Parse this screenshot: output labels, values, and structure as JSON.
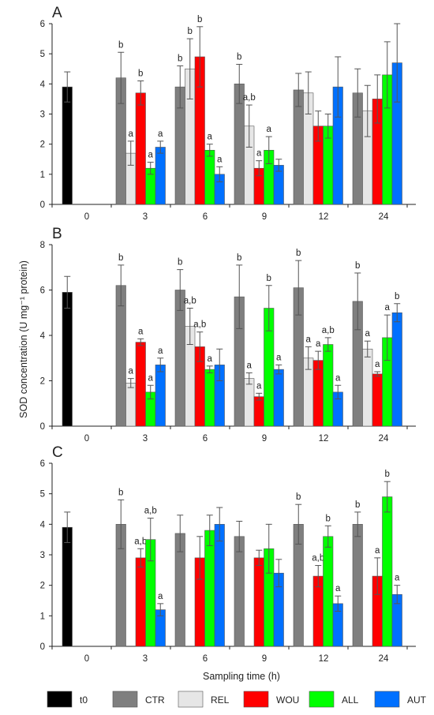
{
  "ylabel": "SOD concentration (U mg⁻¹ protein)",
  "xlabel": "Sampling time (h)",
  "legend": [
    {
      "name": "t0",
      "color": "#000000"
    },
    {
      "name": "CTR",
      "color": "#7f7f7f"
    },
    {
      "name": "REL",
      "color": "#e6e6e6"
    },
    {
      "name": "WOU",
      "color": "#ff0000"
    },
    {
      "name": "ALL",
      "color": "#00ff00"
    },
    {
      "name": "AUT",
      "color": "#0070ff"
    }
  ],
  "chart_data": [
    {
      "type": "bar",
      "panel": "A",
      "categories": [
        "0",
        "3",
        "6",
        "9",
        "12",
        "24"
      ],
      "ylim": [
        0,
        6
      ],
      "yticks": [
        0,
        1,
        2,
        3,
        4,
        5,
        6
      ],
      "grid": false,
      "t0": {
        "value": 3.9,
        "error": 0.5,
        "label": ""
      },
      "series": [
        {
          "name": "CTR",
          "values": [
            null,
            4.2,
            3.9,
            4.0,
            3.8,
            3.7
          ],
          "errors": [
            null,
            0.85,
            0.7,
            0.65,
            0.55,
            0.8
          ],
          "labels": [
            "",
            "b",
            "b",
            "b",
            "",
            ""
          ]
        },
        {
          "name": "REL",
          "values": [
            null,
            1.7,
            4.5,
            2.6,
            3.7,
            3.1
          ],
          "errors": [
            null,
            0.4,
            1.0,
            0.7,
            0.7,
            0.85
          ],
          "labels": [
            "",
            "a",
            "b",
            "a,b",
            "",
            ""
          ]
        },
        {
          "name": "WOU",
          "values": [
            null,
            3.7,
            4.9,
            1.2,
            2.6,
            3.5
          ],
          "errors": [
            null,
            0.4,
            1.0,
            0.25,
            0.5,
            0.8
          ],
          "labels": [
            "",
            "b",
            "b",
            "a",
            "",
            ""
          ]
        },
        {
          "name": "ALL",
          "values": [
            null,
            1.2,
            1.8,
            1.8,
            2.6,
            4.3
          ],
          "errors": [
            null,
            0.2,
            0.2,
            0.45,
            0.4,
            1.1
          ],
          "labels": [
            "",
            "a",
            "a",
            "a",
            "",
            ""
          ]
        },
        {
          "name": "AUT",
          "values": [
            null,
            1.9,
            1.0,
            1.3,
            3.9,
            4.7
          ],
          "errors": [
            null,
            0.2,
            0.25,
            0.2,
            1.0,
            1.3
          ],
          "labels": [
            "",
            "a",
            "a",
            "",
            "",
            ""
          ]
        }
      ]
    },
    {
      "type": "bar",
      "panel": "B",
      "categories": [
        "0",
        "3",
        "6",
        "9",
        "12",
        "24"
      ],
      "ylim": [
        0,
        8
      ],
      "yticks": [
        0,
        2,
        4,
        6,
        8
      ],
      "grid": false,
      "t0": {
        "value": 5.9,
        "error": 0.7,
        "label": ""
      },
      "series": [
        {
          "name": "CTR",
          "values": [
            null,
            6.2,
            6.0,
            5.7,
            6.1,
            5.5
          ],
          "errors": [
            null,
            0.9,
            0.9,
            1.4,
            1.2,
            1.25
          ],
          "labels": [
            "",
            "b",
            "b",
            "b",
            "b",
            "b"
          ]
        },
        {
          "name": "REL",
          "values": [
            null,
            1.9,
            4.4,
            2.1,
            3.0,
            3.4
          ],
          "errors": [
            null,
            0.2,
            0.8,
            0.25,
            0.5,
            0.35
          ],
          "labels": [
            "",
            "a",
            "a,b",
            "a",
            "a",
            "a"
          ]
        },
        {
          "name": "WOU",
          "values": [
            null,
            3.7,
            3.5,
            1.3,
            2.9,
            2.3
          ],
          "errors": [
            null,
            0.15,
            0.65,
            0.15,
            0.4,
            0.1
          ],
          "labels": [
            "",
            "a",
            "a,b",
            "a",
            "a",
            "a"
          ]
        },
        {
          "name": "ALL",
          "values": [
            null,
            1.5,
            2.5,
            5.2,
            3.6,
            3.9
          ],
          "errors": [
            null,
            0.3,
            0.15,
            1.0,
            0.3,
            1.0
          ],
          "labels": [
            "",
            "a",
            "a",
            "b",
            "a,b",
            "a"
          ]
        },
        {
          "name": "AUT",
          "values": [
            null,
            2.7,
            2.7,
            2.5,
            1.5,
            5.0
          ],
          "errors": [
            null,
            0.3,
            0.7,
            0.2,
            0.3,
            0.4
          ],
          "labels": [
            "",
            "a",
            "",
            "a",
            "a",
            "b"
          ]
        }
      ]
    },
    {
      "type": "bar",
      "panel": "C",
      "categories": [
        "0",
        "3",
        "6",
        "9",
        "12",
        "24"
      ],
      "ylim": [
        0,
        6
      ],
      "yticks": [
        0,
        1,
        2,
        3,
        4,
        5,
        6
      ],
      "grid": false,
      "t0": {
        "value": 3.9,
        "error": 0.5,
        "label": ""
      },
      "series": [
        {
          "name": "CTR",
          "values": [
            null,
            4.0,
            3.7,
            3.6,
            4.0,
            4.0
          ],
          "errors": [
            null,
            0.8,
            0.6,
            0.5,
            0.65,
            0.4
          ],
          "labels": [
            "",
            "b",
            "",
            "",
            "b",
            "b"
          ]
        },
        {
          "name": "REL",
          "values": [
            null,
            null,
            null,
            null,
            null,
            null
          ],
          "errors": [
            null,
            null,
            null,
            null,
            null,
            null
          ],
          "labels": [
            "",
            "",
            "",
            "",
            "",
            ""
          ]
        },
        {
          "name": "WOU",
          "values": [
            null,
            2.9,
            2.9,
            2.9,
            2.3,
            2.3
          ],
          "errors": [
            null,
            0.3,
            0.7,
            0.25,
            0.35,
            0.6
          ],
          "labels": [
            "",
            "a,b",
            "",
            "",
            "a,b",
            "a"
          ]
        },
        {
          "name": "ALL",
          "values": [
            null,
            3.5,
            3.8,
            3.2,
            3.6,
            4.9
          ],
          "errors": [
            null,
            0.7,
            0.5,
            0.8,
            0.35,
            0.5
          ],
          "labels": [
            "",
            "a,b",
            "",
            "",
            "b",
            "b"
          ]
        },
        {
          "name": "AUT",
          "values": [
            null,
            1.2,
            4.0,
            2.4,
            1.4,
            1.7
          ],
          "errors": [
            null,
            0.2,
            0.55,
            0.45,
            0.25,
            0.3
          ],
          "labels": [
            "",
            "a",
            "",
            "",
            "a",
            "a"
          ]
        }
      ]
    }
  ]
}
